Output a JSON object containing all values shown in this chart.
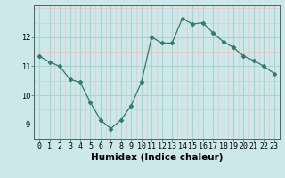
{
  "x": [
    0,
    1,
    2,
    3,
    4,
    5,
    6,
    7,
    8,
    9,
    10,
    11,
    12,
    13,
    14,
    15,
    16,
    17,
    18,
    19,
    20,
    21,
    22,
    23
  ],
  "y": [
    11.35,
    11.15,
    11.0,
    10.55,
    10.45,
    9.75,
    9.15,
    8.85,
    9.15,
    9.65,
    10.45,
    12.0,
    11.8,
    11.8,
    12.65,
    12.45,
    12.5,
    12.15,
    11.85,
    11.65,
    11.35,
    11.2,
    11.0,
    10.75
  ],
  "line_color": "#2d7a6e",
  "marker": "D",
  "marker_size": 2.5,
  "bg_color": "#cce8e8",
  "grid_major_color": "#aad4d4",
  "grid_minor_color": "#e8c8c8",
  "xlabel": "Humidex (Indice chaleur)",
  "xlim": [
    -0.5,
    23.5
  ],
  "ylim": [
    8.5,
    13.1
  ],
  "yticks": [
    9,
    10,
    11,
    12
  ],
  "tick_fontsize": 6,
  "label_fontsize": 7.5
}
